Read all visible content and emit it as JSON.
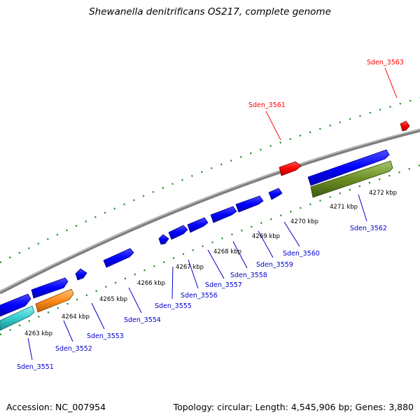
{
  "title": "Shewanella denitrificans OS217, complete genome",
  "footer": {
    "accession": "Accession: NC_007954",
    "summary": "Topology: circular; Length: 4,545,906 bp; Genes: 3,880"
  },
  "colors": {
    "backbone": "#8a8a8a",
    "gene_forward": "#0000ff",
    "gene_forward_edge": "#00008a",
    "gene_red": "#ff0000",
    "gene_cyan": "#33cccc",
    "gene_orange": "#ff8c1a",
    "gene_olive": "#6b8e23",
    "ruler_dots": "#228b22",
    "label_blue": "#0000cc",
    "label_red": "#ff0000"
  },
  "tick_labels": [
    "4263 kbp",
    "4264 kbp",
    "4265 kbp",
    "4266 kbp",
    "4267 kbp",
    "4268 kbp",
    "4269 kbp",
    "4270 kbp",
    "4271 kbp",
    "4272 kbp"
  ],
  "gene_labels": [
    {
      "name": "Sden_3551",
      "color": "blue"
    },
    {
      "name": "Sden_3552",
      "color": "blue"
    },
    {
      "name": "Sden_3553",
      "color": "blue"
    },
    {
      "name": "Sden_3554",
      "color": "blue"
    },
    {
      "name": "Sden_3555",
      "color": "blue"
    },
    {
      "name": "Sden_3556",
      "color": "blue"
    },
    {
      "name": "Sden_3557",
      "color": "blue"
    },
    {
      "name": "Sden_3558",
      "color": "blue"
    },
    {
      "name": "Sden_3559",
      "color": "blue"
    },
    {
      "name": "Sden_3560",
      "color": "blue"
    },
    {
      "name": "Sden_3562",
      "color": "blue"
    },
    {
      "name": "Sden_3561",
      "color": "red"
    },
    {
      "name": "Sden_3563",
      "color": "red"
    }
  ]
}
